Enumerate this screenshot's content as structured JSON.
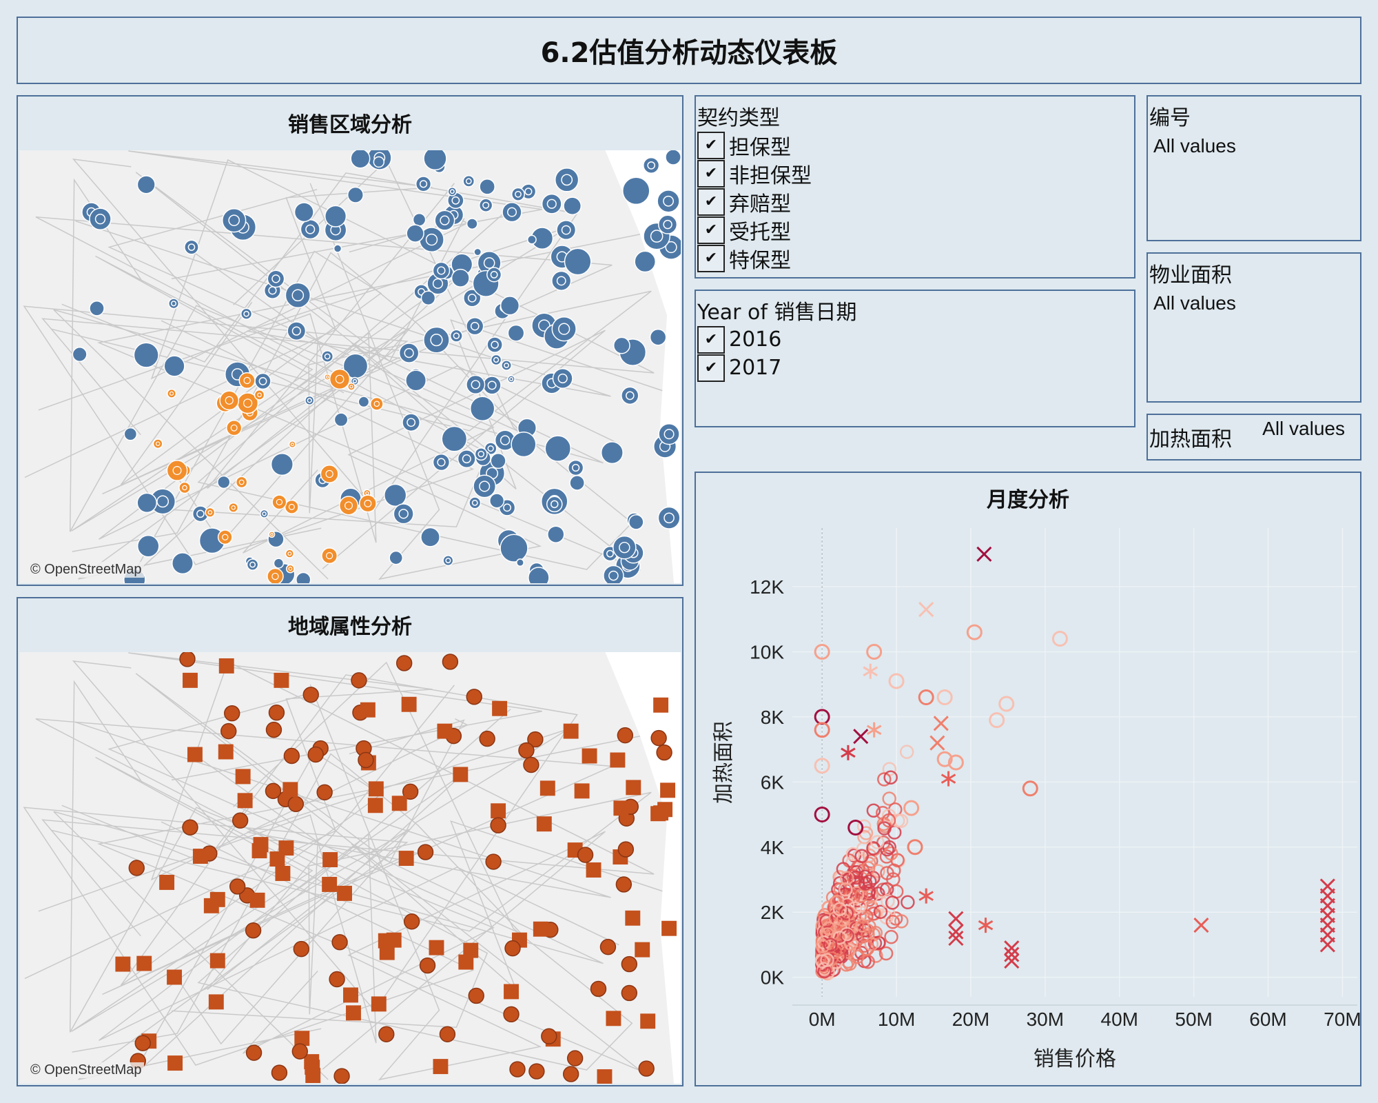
{
  "dashboard": {
    "title": "6.2估值分析动态仪表板"
  },
  "map1": {
    "title": "销售区域分析",
    "attribution": "© OpenStreetMap",
    "colors": {
      "blue": "#4e79a7",
      "orange": "#f28e2b"
    }
  },
  "map2": {
    "title": "地域属性分析",
    "attribution": "© OpenStreetMap",
    "colors": {
      "mark": "#c4501c"
    }
  },
  "filters": {
    "contract_type": {
      "title": "契约类型",
      "items": [
        "担保型",
        "非担保型",
        "弃赔型",
        "受托型",
        "特保型"
      ]
    },
    "year": {
      "title": "Year of 销售日期",
      "items": [
        "2016",
        "2017"
      ]
    },
    "code": {
      "title": "编号",
      "value": "All values"
    },
    "property_area": {
      "title": "物业面积",
      "value": "All values"
    },
    "heating_area": {
      "title": "加热面积",
      "value": "All values"
    }
  },
  "chart_data": {
    "type": "scatter",
    "title": "月度分析",
    "xlabel": "销售价格",
    "ylabel": "加热面积",
    "x_ticks": [
      "0M",
      "10M",
      "20M",
      "30M",
      "40M",
      "50M",
      "60M",
      "70M"
    ],
    "y_ticks": [
      "0K",
      "2K",
      "4K",
      "6K",
      "8K",
      "10K",
      "12K"
    ],
    "xlim": [
      -4000000,
      72000000
    ],
    "ylim": [
      -600,
      13800
    ],
    "grid": true,
    "colors": [
      "#f8c0b2",
      "#f6a08c",
      "#f07f6c",
      "#e85d57",
      "#d43c4a",
      "#a31040"
    ],
    "points": [
      {
        "x": 21800000,
        "y": 13000,
        "shape": "x",
        "c": 5
      },
      {
        "x": 14000000,
        "y": 11300,
        "shape": "x",
        "c": 0
      },
      {
        "x": 20500000,
        "y": 10600,
        "shape": "o",
        "c": 1
      },
      {
        "x": 32000000,
        "y": 10400,
        "shape": "o",
        "c": 0
      },
      {
        "x": 0,
        "y": 10000,
        "shape": "o",
        "c": 1
      },
      {
        "x": 7000000,
        "y": 10000,
        "shape": "o",
        "c": 1
      },
      {
        "x": 6500000,
        "y": 9400,
        "shape": "*",
        "c": 0
      },
      {
        "x": 10000000,
        "y": 9100,
        "shape": "o",
        "c": 0
      },
      {
        "x": 16500000,
        "y": 8600,
        "shape": "o",
        "c": 0
      },
      {
        "x": 14000000,
        "y": 8600,
        "shape": "o",
        "c": 2
      },
      {
        "x": 24800000,
        "y": 8400,
        "shape": "o",
        "c": 0
      },
      {
        "x": 23500000,
        "y": 7900,
        "shape": "o",
        "c": 0
      },
      {
        "x": 16000000,
        "y": 7800,
        "shape": "x",
        "c": 2
      },
      {
        "x": 0,
        "y": 8000,
        "shape": "o",
        "c": 5
      },
      {
        "x": 0,
        "y": 7600,
        "shape": "o",
        "c": 2
      },
      {
        "x": 5200000,
        "y": 7400,
        "shape": "x",
        "c": 5
      },
      {
        "x": 15500000,
        "y": 7200,
        "shape": "x",
        "c": 2
      },
      {
        "x": 16500000,
        "y": 6700,
        "shape": "o",
        "c": 1
      },
      {
        "x": 18000000,
        "y": 6600,
        "shape": "o",
        "c": 1
      },
      {
        "x": 17000000,
        "y": 6100,
        "shape": "*",
        "c": 3
      },
      {
        "x": 28000000,
        "y": 5800,
        "shape": "o",
        "c": 2
      },
      {
        "x": 12000000,
        "y": 5200,
        "shape": "o",
        "c": 1
      },
      {
        "x": 12500000,
        "y": 4000,
        "shape": "o",
        "c": 2
      },
      {
        "x": 14000000,
        "y": 2500,
        "shape": "*",
        "c": 3
      },
      {
        "x": 18000000,
        "y": 1800,
        "shape": "x",
        "c": 4
      },
      {
        "x": 18000000,
        "y": 1400,
        "shape": "x",
        "c": 4
      },
      {
        "x": 18000000,
        "y": 1200,
        "shape": "x",
        "c": 4
      },
      {
        "x": 22000000,
        "y": 1600,
        "shape": "*",
        "c": 3
      },
      {
        "x": 25500000,
        "y": 900,
        "shape": "x",
        "c": 4
      },
      {
        "x": 25500000,
        "y": 700,
        "shape": "x",
        "c": 4
      },
      {
        "x": 25500000,
        "y": 500,
        "shape": "x",
        "c": 4
      },
      {
        "x": 51000000,
        "y": 1600,
        "shape": "x",
        "c": 3
      },
      {
        "x": 68000000,
        "y": 2800,
        "shape": "x",
        "c": 4
      },
      {
        "x": 68000000,
        "y": 2500,
        "shape": "x",
        "c": 4
      },
      {
        "x": 68000000,
        "y": 2200,
        "shape": "x",
        "c": 4
      },
      {
        "x": 68000000,
        "y": 1900,
        "shape": "x",
        "c": 4
      },
      {
        "x": 68000000,
        "y": 1600,
        "shape": "x",
        "c": 4
      },
      {
        "x": 68000000,
        "y": 1300,
        "shape": "x",
        "c": 4
      },
      {
        "x": 68000000,
        "y": 1000,
        "shape": "x",
        "c": 4
      },
      {
        "x": 6000000,
        "y": 900,
        "shape": "o",
        "c": 2
      },
      {
        "x": 7000000,
        "y": 7600,
        "shape": "*",
        "c": 1
      },
      {
        "x": 3500000,
        "y": 6900,
        "shape": "*",
        "c": 4
      },
      {
        "x": 0,
        "y": 6500,
        "shape": "o",
        "c": 0
      },
      {
        "x": 0,
        "y": 5000,
        "shape": "o",
        "c": 5
      },
      {
        "x": 4500000,
        "y": 4600,
        "shape": "o",
        "c": 5
      }
    ]
  }
}
